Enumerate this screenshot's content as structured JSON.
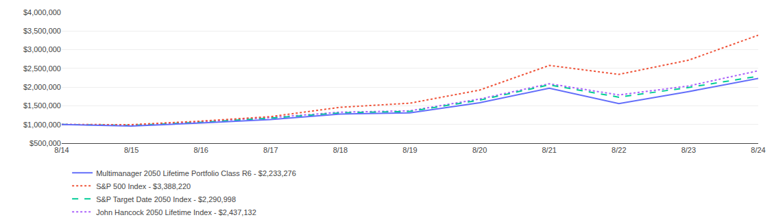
{
  "chart_data": {
    "type": "line",
    "categories": [
      "8/14",
      "8/15",
      "8/16",
      "8/17",
      "8/18",
      "8/19",
      "8/20",
      "8/21",
      "8/22",
      "8/23",
      "8/24"
    ],
    "series": [
      {
        "name": "Multimanager 2050 Lifetime Portfolio Class R6 - $2,233,276",
        "line_style": "solid",
        "values": [
          1000000,
          960000,
          1040000,
          1130000,
          1280000,
          1310000,
          1580000,
          1970000,
          1560000,
          1880000,
          2233276
        ]
      },
      {
        "name": "S&P 500 Index - $3,388,220",
        "line_style": "dotted",
        "values": [
          1000000,
          995000,
          1090000,
          1210000,
          1460000,
          1570000,
          1920000,
          2580000,
          2340000,
          2720000,
          3388220
        ]
      },
      {
        "name": "S&P Target Date 2050 Index - $2,290,998",
        "line_style": "dashed",
        "values": [
          1000000,
          975000,
          1060000,
          1170000,
          1310000,
          1350000,
          1650000,
          2060000,
          1730000,
          1990000,
          2290998
        ]
      },
      {
        "name": "John Hancock 2050 Lifetime Index - $2,437,132",
        "line_style": "dotted",
        "values": [
          1000000,
          985000,
          1075000,
          1185000,
          1330000,
          1365000,
          1680000,
          2090000,
          1790000,
          2030000,
          2437132
        ]
      }
    ],
    "ylim": [
      500000,
      4000000
    ],
    "yticks": [
      {
        "value": 500000,
        "label": "$500,000"
      },
      {
        "value": 1000000,
        "label": "$1,000,000"
      },
      {
        "value": 1500000,
        "label": "$1,500,000"
      },
      {
        "value": 2000000,
        "label": "$2,000,000"
      },
      {
        "value": 2500000,
        "label": "$2,500,000"
      },
      {
        "value": 3000000,
        "label": "$3,000,000"
      },
      {
        "value": 3500000,
        "label": "$3,500,000"
      },
      {
        "value": 4000000,
        "label": "$4,000,000"
      }
    ],
    "grid": true,
    "legend": "bottom"
  }
}
